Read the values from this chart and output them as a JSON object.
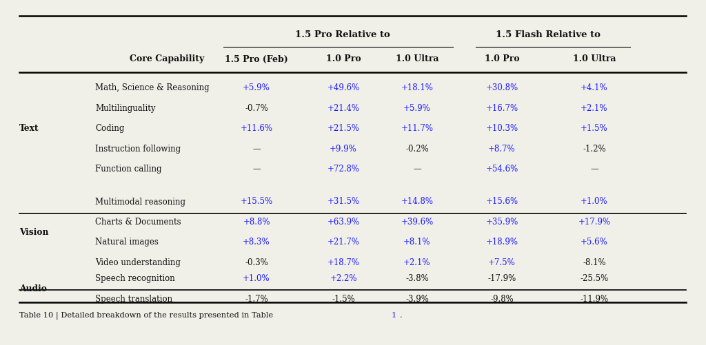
{
  "header_group1": "1.5 Pro Relative to",
  "header_group2": "1.5 Flash Relative to",
  "sections": [
    {
      "group": "Text",
      "rows": [
        {
          "capability": "Math, Science & Reasoning",
          "values": [
            "+5.9%",
            "+49.6%",
            "+18.1%",
            "+30.8%",
            "+4.1%"
          ],
          "colors": [
            "blue",
            "blue",
            "blue",
            "blue",
            "blue"
          ]
        },
        {
          "capability": "Multilinguality",
          "values": [
            "-0.7%",
            "+21.4%",
            "+5.9%",
            "+16.7%",
            "+2.1%"
          ],
          "colors": [
            "black",
            "blue",
            "blue",
            "blue",
            "blue"
          ]
        },
        {
          "capability": "Coding",
          "values": [
            "+11.6%",
            "+21.5%",
            "+11.7%",
            "+10.3%",
            "+1.5%"
          ],
          "colors": [
            "blue",
            "blue",
            "blue",
            "blue",
            "blue"
          ]
        },
        {
          "capability": "Instruction following",
          "values": [
            "—",
            "+9.9%",
            "-0.2%",
            "+8.7%",
            "-1.2%"
          ],
          "colors": [
            "black",
            "blue",
            "black",
            "blue",
            "black"
          ]
        },
        {
          "capability": "Function calling",
          "values": [
            "—",
            "+72.8%",
            "—",
            "+54.6%",
            "—"
          ],
          "colors": [
            "black",
            "blue",
            "black",
            "blue",
            "black"
          ]
        }
      ]
    },
    {
      "group": "Vision",
      "rows": [
        {
          "capability": "Multimodal reasoning",
          "values": [
            "+15.5%",
            "+31.5%",
            "+14.8%",
            "+15.6%",
            "+1.0%"
          ],
          "colors": [
            "blue",
            "blue",
            "blue",
            "blue",
            "blue"
          ]
        },
        {
          "capability": "Charts & Documents",
          "values": [
            "+8.8%",
            "+63.9%",
            "+39.6%",
            "+35.9%",
            "+17.9%"
          ],
          "colors": [
            "blue",
            "blue",
            "blue",
            "blue",
            "blue"
          ]
        },
        {
          "capability": "Natural images",
          "values": [
            "+8.3%",
            "+21.7%",
            "+8.1%",
            "+18.9%",
            "+5.6%"
          ],
          "colors": [
            "blue",
            "blue",
            "blue",
            "blue",
            "blue"
          ]
        },
        {
          "capability": "Video understanding",
          "values": [
            "-0.3%",
            "+18.7%",
            "+2.1%",
            "+7.5%",
            "-8.1%"
          ],
          "colors": [
            "black",
            "blue",
            "blue",
            "blue",
            "black"
          ]
        }
      ]
    },
    {
      "group": "Audio",
      "rows": [
        {
          "capability": "Speech recognition",
          "values": [
            "+1.0%",
            "+2.2%",
            "-3.8%",
            "-17.9%",
            "-25.5%"
          ],
          "colors": [
            "blue",
            "blue",
            "black",
            "black",
            "black"
          ]
        },
        {
          "capability": "Speech translation",
          "values": [
            "-1.7%",
            "-1.5%",
            "-3.9%",
            "-9.8%",
            "-11.9%"
          ],
          "colors": [
            "black",
            "black",
            "black",
            "black",
            "black"
          ]
        }
      ]
    }
  ],
  "bg_color": "#f0efe8",
  "blue_color": "#1a1aff",
  "black_color": "#111111",
  "caption_black": "Table 10 | Detailed breakdown of the results presented in Table ",
  "caption_blue": "1",
  "caption_end": "."
}
